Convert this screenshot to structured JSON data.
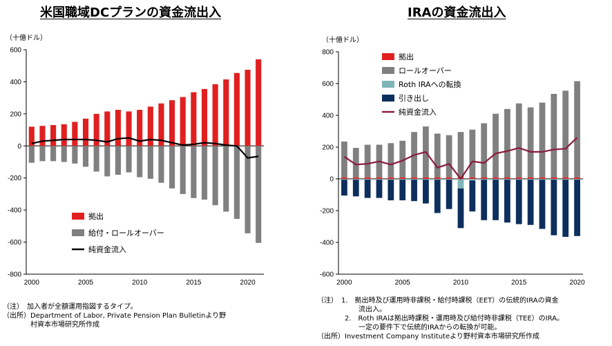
{
  "charts": [
    {
      "title": "米国職域DCプランの資金流出入",
      "unit": "（十億ドル）",
      "notes": [
        "（注）　加入者が全額運用指図するタイプ。",
        "（出所）Department of Labor, Private Pension Plan Bulletinより野",
        "　　　　村資本市場研究所作成"
      ]
    },
    {
      "title": "IRAの資金流出入",
      "unit": "（十億ドル）",
      "notes": [
        "（注）　1.　拠出時及び運用時非課税・給付時課税（EET）の伝統的IRAの資金",
        "　　　　　　流出入。",
        "　　　　2.　Roth IRAは拠出時課税・運用時及び給付時非課税（TEE）のIRA。",
        "　　　　　　一定の要件下で伝統的IRAからの転換が可能。",
        "（出所）Investment Company Instituteより野村資本市場研究所作成"
      ]
    }
  ],
  "chart_data": [
    {
      "type": "bar",
      "title": "米国職域DCプランの資金流出入",
      "ylabel": "（十億ドル）",
      "ylim": [
        -800,
        600
      ],
      "yticks": [
        -800,
        -600,
        -400,
        -200,
        0,
        200,
        400,
        600
      ],
      "x": [
        2000,
        2001,
        2002,
        2003,
        2004,
        2005,
        2006,
        2007,
        2008,
        2009,
        2010,
        2011,
        2012,
        2013,
        2014,
        2015,
        2016,
        2017,
        2018,
        2019,
        2020,
        2021
      ],
      "xticks": [
        2000,
        2005,
        2010,
        2015,
        2020
      ],
      "series": [
        {
          "name": "拠出",
          "kind": "bar",
          "color": "#e02020",
          "values": [
            120,
            125,
            130,
            135,
            150,
            170,
            200,
            215,
            225,
            215,
            225,
            245,
            265,
            285,
            305,
            335,
            355,
            385,
            415,
            455,
            475,
            540
          ]
        },
        {
          "name": "給付・ロールオーバー",
          "kind": "bar",
          "color": "#808080",
          "values": [
            -105,
            -95,
            -95,
            -100,
            -110,
            -130,
            -160,
            -190,
            -180,
            -165,
            -195,
            -205,
            -230,
            -265,
            -300,
            -325,
            -335,
            -370,
            -410,
            -455,
            -545,
            -605
          ]
        },
        {
          "name": "純資金流入",
          "kind": "line",
          "color": "#000000",
          "values": [
            15,
            30,
            35,
            40,
            40,
            40,
            35,
            25,
            45,
            50,
            30,
            40,
            35,
            20,
            5,
            10,
            20,
            15,
            5,
            0,
            -75,
            -65
          ]
        }
      ],
      "legend": "bottom-left",
      "grid": false
    },
    {
      "type": "bar",
      "title": "IRAの資金流出入",
      "ylabel": "（十億ドル）",
      "ylim": [
        -600,
        800
      ],
      "yticks": [
        -600,
        -400,
        -200,
        0,
        200,
        400,
        600,
        800
      ],
      "x": [
        2000,
        2001,
        2002,
        2003,
        2004,
        2005,
        2006,
        2007,
        2008,
        2009,
        2010,
        2011,
        2012,
        2013,
        2014,
        2015,
        2016,
        2017,
        2018,
        2019,
        2020
      ],
      "xticks": [
        2000,
        2005,
        2010,
        2015,
        2020
      ],
      "series": [
        {
          "name": "拠出",
          "kind": "bar",
          "color": "#e02020",
          "values": [
            10,
            10,
            10,
            10,
            10,
            10,
            10,
            10,
            10,
            10,
            10,
            10,
            10,
            10,
            10,
            10,
            10,
            10,
            10,
            10,
            10
          ]
        },
        {
          "name": "ロールオーバー",
          "kind": "bar",
          "color": "#808080",
          "values": [
            225,
            185,
            205,
            205,
            215,
            230,
            285,
            320,
            275,
            265,
            285,
            300,
            340,
            400,
            430,
            465,
            440,
            470,
            525,
            545,
            605
          ]
        },
        {
          "name": "Roth IRAへの転換",
          "kind": "bar",
          "color": "#7fb4b8",
          "values": [
            -5,
            -5,
            -5,
            -5,
            -5,
            -5,
            -5,
            -5,
            -5,
            -5,
            -60,
            -10,
            -5,
            -5,
            -5,
            -5,
            -5,
            -5,
            -5,
            -5,
            -5
          ]
        },
        {
          "name": "引き出し",
          "kind": "bar",
          "color": "#0d2f5e",
          "values": [
            -100,
            -105,
            -115,
            -115,
            -130,
            -130,
            -135,
            -150,
            -210,
            -185,
            -250,
            -195,
            -255,
            -255,
            -270,
            -280,
            -285,
            -310,
            -350,
            -360,
            -355
          ]
        },
        {
          "name": "純資金流入",
          "kind": "line",
          "color": "#8b1a3a",
          "values": [
            140,
            90,
            95,
            110,
            90,
            115,
            150,
            170,
            70,
            95,
            0,
            110,
            100,
            160,
            175,
            195,
            170,
            170,
            185,
            190,
            260
          ]
        }
      ],
      "legend": "top-left",
      "grid": false
    }
  ]
}
